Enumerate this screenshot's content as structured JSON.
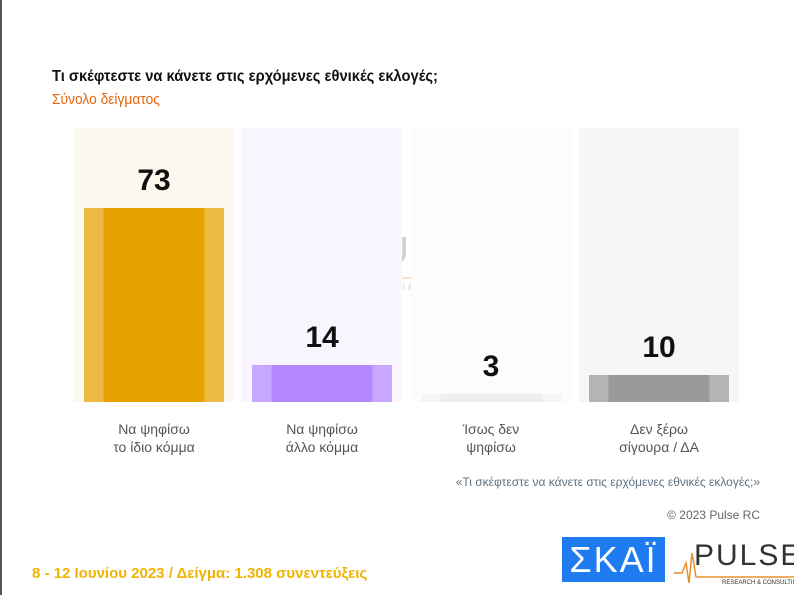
{
  "title": "Τι σκέφτεστε να κάνετε στις ερχόμενες εθνικές εκλογές;",
  "subtitle": "Σύνολο δείγματος",
  "chart_data": {
    "type": "bar",
    "title": "Τι σκέφτεστε να κάνετε στις ερχόμενες εθνικές εκλογές;",
    "subtitle": "Σύνολο δείγματος",
    "categories": [
      [
        "Να ψηφίσω",
        "το ίδιο κόμμα"
      ],
      [
        "Να ψηφίσω",
        "άλλο κόμμα"
      ],
      [
        "Ίσως δεν",
        "ψηφίσω"
      ],
      [
        "Δεν ξέρω",
        "σίγουρα / ΔΑ"
      ]
    ],
    "values": [
      73,
      14,
      3,
      10
    ],
    "colors": [
      "#E8A200",
      "#B388FF",
      "#EEEEEE",
      "#999999"
    ],
    "ylim": [
      0,
      100
    ],
    "grid": false
  },
  "question_note": "«Τι σκέφτεστε να κάνετε στις ερχόμενες εθνικές εκλογές;»",
  "copyright": "© 2023 Pulse RC",
  "footer": "8 - 12  Ιουνίου  2023  /  Δείγμα:  1.308 συνεντεύξεις",
  "logos": {
    "skai": "ΣΚΑΪ",
    "pulse": "PULSE",
    "pulse_tag": "RESEARCH & CONSULTING"
  }
}
